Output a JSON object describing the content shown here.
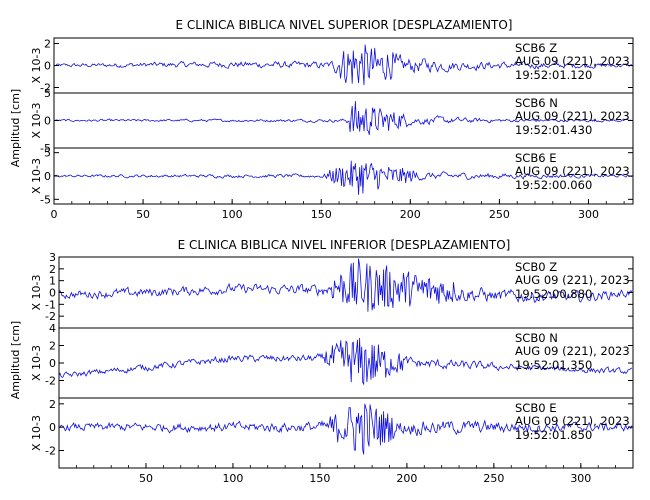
{
  "chart_data": [
    {
      "type": "line",
      "title": "E CLINICA BIBLICA NIVEL SUPERIOR [DESPLAZAMIENTO]",
      "ylabel": "Amplitud [cm]",
      "xlim": [
        0,
        325
      ],
      "xticks": [
        0,
        50,
        100,
        150,
        200,
        250,
        300
      ],
      "grid": false,
      "panels": [
        {
          "station": "SCB6",
          "component": "Z",
          "date": "AUG 09 (221), 2023",
          "time": "19:52:01.120",
          "scale_label": "X 10-3",
          "ylim": [
            -2.5,
            2.5
          ],
          "yticks": [
            -2,
            0,
            2
          ],
          "trace": [
            {
              "t": 0,
              "a": 0.0,
              "noise": 0.25
            },
            {
              "t": 100,
              "a": 0.1,
              "noise": 0.45
            },
            {
              "t": 155,
              "a": 0.0,
              "noise": 0.5
            },
            {
              "t": 162,
              "a": 0.0,
              "noise": 1.8
            },
            {
              "t": 168,
              "a": 0.0,
              "noise": 2.6
            },
            {
              "t": 180,
              "a": 0.0,
              "noise": 2.0
            },
            {
              "t": 195,
              "a": 0.0,
              "noise": 1.2
            },
            {
              "t": 230,
              "a": 0.0,
              "noise": 0.6
            },
            {
              "t": 325,
              "a": 0.0,
              "noise": 0.25
            }
          ]
        },
        {
          "station": "SCB6",
          "component": "N",
          "date": "AUG 09 (221), 2023",
          "time": "19:52:01.430",
          "scale_label": "X 10-3",
          "ylim": [
            -5,
            5
          ],
          "yticks": [
            -5,
            0,
            5
          ],
          "trace": [
            {
              "t": 0,
              "a": 0.0,
              "noise": 0.3
            },
            {
              "t": 150,
              "a": 0.0,
              "noise": 0.4
            },
            {
              "t": 164,
              "a": 0.0,
              "noise": 0.5
            },
            {
              "t": 168,
              "a": 0.0,
              "noise": 4.5
            },
            {
              "t": 180,
              "a": 0.0,
              "noise": 3.0
            },
            {
              "t": 200,
              "a": 0.0,
              "noise": 1.2
            },
            {
              "t": 250,
              "a": 0.0,
              "noise": 0.5
            },
            {
              "t": 325,
              "a": 0.0,
              "noise": 0.3
            }
          ]
        },
        {
          "station": "SCB6",
          "component": "E",
          "date": "AUG 09 (221), 2023",
          "time": "19:52:00.060",
          "scale_label": "X 10-3",
          "ylim": [
            -6,
            6
          ],
          "yticks": [
            -5,
            0,
            5
          ],
          "trace": [
            {
              "t": 0,
              "a": 0.0,
              "noise": 0.4
            },
            {
              "t": 150,
              "a": 0.0,
              "noise": 0.6
            },
            {
              "t": 165,
              "a": 0.0,
              "noise": 3.5
            },
            {
              "t": 172,
              "a": 0.0,
              "noise": 5.0
            },
            {
              "t": 185,
              "a": 0.0,
              "noise": 3.0
            },
            {
              "t": 205,
              "a": 0.0,
              "noise": 1.2
            },
            {
              "t": 325,
              "a": 0.0,
              "noise": 0.4
            }
          ]
        }
      ]
    },
    {
      "type": "line",
      "title": "E CLINICA BIBLICA NIVEL INFERIOR [DESPLAZAMIENTO]",
      "ylabel": "Amplitud [cm]",
      "xlim": [
        0,
        330
      ],
      "xticks": [
        50,
        100,
        150,
        200,
        250,
        300
      ],
      "grid": false,
      "panels": [
        {
          "station": "SCB0",
          "component": "Z",
          "date": "AUG 09 (221), 2023",
          "time": "19:52:00.880",
          "scale_label": "X 10-3",
          "ylim": [
            -3,
            3
          ],
          "yticks": [
            -2,
            -1,
            0,
            1,
            2,
            3
          ],
          "trace": [
            {
              "t": 0,
              "a": -0.2,
              "noise": 0.5
            },
            {
              "t": 50,
              "a": 0.0,
              "noise": 0.6
            },
            {
              "t": 100,
              "a": 0.3,
              "noise": 0.6
            },
            {
              "t": 150,
              "a": 0.2,
              "noise": 0.7
            },
            {
              "t": 160,
              "a": 0.5,
              "noise": 1.5
            },
            {
              "t": 172,
              "a": 0.5,
              "noise": 2.8
            },
            {
              "t": 210,
              "a": 0.3,
              "noise": 1.5
            },
            {
              "t": 250,
              "a": -0.3,
              "noise": 0.8
            },
            {
              "t": 300,
              "a": -0.4,
              "noise": 0.7
            },
            {
              "t": 330,
              "a": 0.0,
              "noise": 0.5
            }
          ]
        },
        {
          "station": "SCB0",
          "component": "N",
          "date": "AUG 09 (221), 2023",
          "time": "19:52:01.350",
          "scale_label": "X 10-3",
          "ylim": [
            -4,
            4
          ],
          "yticks": [
            -2,
            0,
            2,
            4
          ],
          "trace": [
            {
              "t": 0,
              "a": -1.5,
              "noise": 0.5
            },
            {
              "t": 50,
              "a": -0.5,
              "noise": 0.6
            },
            {
              "t": 100,
              "a": 0.5,
              "noise": 0.6
            },
            {
              "t": 150,
              "a": 0.5,
              "noise": 0.7
            },
            {
              "t": 165,
              "a": 0.5,
              "noise": 3.0
            },
            {
              "t": 175,
              "a": 0.0,
              "noise": 3.5
            },
            {
              "t": 200,
              "a": 0.0,
              "noise": 1.0
            },
            {
              "t": 260,
              "a": -0.5,
              "noise": 0.6
            },
            {
              "t": 330,
              "a": -1.0,
              "noise": 0.5
            }
          ]
        },
        {
          "station": "SCB0",
          "component": "E",
          "date": "AUG 09 (221), 2023",
          "time": "19:52:01.850",
          "scale_label": "X 10-3",
          "ylim": [
            -3.5,
            2.5
          ],
          "yticks": [
            -2,
            0,
            2
          ],
          "trace": [
            {
              "t": 0,
              "a": 0.0,
              "noise": 0.5
            },
            {
              "t": 150,
              "a": 0.0,
              "noise": 0.7
            },
            {
              "t": 165,
              "a": 0.0,
              "noise": 2.0
            },
            {
              "t": 172,
              "a": 0.0,
              "noise": 3.2
            },
            {
              "t": 195,
              "a": 0.0,
              "noise": 1.0
            },
            {
              "t": 330,
              "a": 0.0,
              "noise": 0.5
            }
          ]
        }
      ]
    }
  ],
  "colors": {
    "trace": "#1010e0",
    "axes": "#000000",
    "background": "#ffffff"
  }
}
